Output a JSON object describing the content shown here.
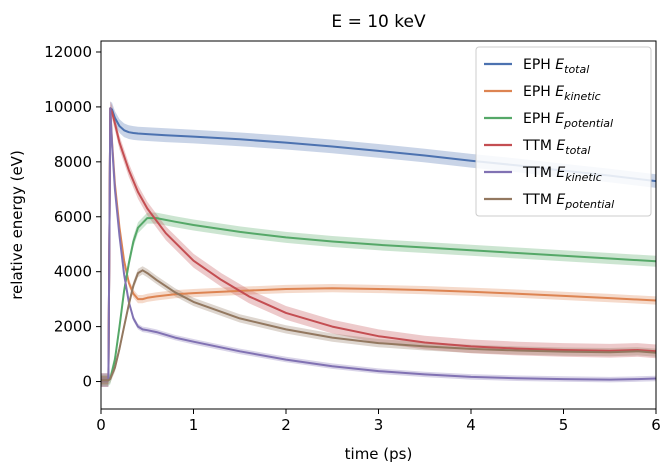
{
  "chart_data": {
    "type": "line",
    "title": "E = 10 keV",
    "xlabel": "time (ps)",
    "ylabel": "relative energy (eV)",
    "xlim": [
      0,
      6
    ],
    "ylim": [
      -1000,
      12400
    ],
    "xticks": [
      0,
      1,
      2,
      3,
      4,
      5,
      6
    ],
    "yticks": [
      0,
      2000,
      4000,
      6000,
      8000,
      10000,
      12000
    ],
    "grid": false,
    "legend_position": "top-right",
    "series": [
      {
        "name_base": "EPH",
        "name_sub": "total",
        "color": "#4c72b0",
        "band": 250,
        "x": [
          0,
          0.08,
          0.1,
          0.12,
          0.15,
          0.2,
          0.25,
          0.3,
          0.35,
          0.4,
          0.5,
          0.7,
          1.0,
          1.5,
          2.0,
          2.5,
          3.0,
          3.5,
          4.0,
          4.5,
          5.0,
          5.5,
          6.0
        ],
        "y": [
          50,
          50,
          9950,
          9900,
          9600,
          9300,
          9150,
          9080,
          9050,
          9030,
          9010,
          8970,
          8920,
          8820,
          8700,
          8560,
          8400,
          8230,
          8040,
          7870,
          7680,
          7500,
          7300
        ]
      },
      {
        "name_base": "EPH",
        "name_sub": "kinetic",
        "color": "#dd8452",
        "band": 150,
        "x": [
          0,
          0.08,
          0.1,
          0.12,
          0.15,
          0.2,
          0.25,
          0.3,
          0.35,
          0.4,
          0.45,
          0.5,
          0.6,
          0.8,
          1.0,
          1.5,
          2.0,
          2.5,
          3.0,
          3.5,
          4.0,
          4.5,
          5.0,
          5.5,
          6.0
        ],
        "y": [
          50,
          50,
          9950,
          8700,
          7200,
          5600,
          4400,
          3600,
          3200,
          3000,
          3000,
          3050,
          3100,
          3180,
          3220,
          3300,
          3370,
          3400,
          3370,
          3330,
          3270,
          3200,
          3120,
          3040,
          2950
        ]
      },
      {
        "name_base": "EPH",
        "name_sub": "potential",
        "color": "#55a868",
        "band": 200,
        "x": [
          0,
          0.08,
          0.1,
          0.15,
          0.2,
          0.25,
          0.3,
          0.35,
          0.4,
          0.5,
          0.6,
          0.8,
          1.0,
          1.5,
          2.0,
          2.5,
          3.0,
          3.5,
          4.0,
          4.5,
          5.0,
          5.5,
          6.0
        ],
        "y": [
          50,
          50,
          100,
          800,
          2000,
          3300,
          4300,
          5100,
          5600,
          5950,
          5950,
          5820,
          5700,
          5450,
          5250,
          5100,
          4980,
          4880,
          4780,
          4680,
          4580,
          4480,
          4380
        ]
      },
      {
        "name_base": "TTM",
        "name_sub": "total",
        "color": "#c44e52",
        "band": 250,
        "x": [
          0,
          0.08,
          0.1,
          0.12,
          0.15,
          0.2,
          0.3,
          0.4,
          0.5,
          0.7,
          1.0,
          1.3,
          1.6,
          2.0,
          2.5,
          3.0,
          3.5,
          4.0,
          4.5,
          5.0,
          5.5,
          5.8,
          6.0
        ],
        "y": [
          50,
          50,
          9950,
          9800,
          9400,
          8700,
          7700,
          6900,
          6300,
          5400,
          4400,
          3700,
          3100,
          2500,
          2000,
          1650,
          1420,
          1280,
          1200,
          1150,
          1120,
          1150,
          1100
        ]
      },
      {
        "name_base": "TTM",
        "name_sub": "kinetic",
        "color": "#8172b3",
        "band": 100,
        "x": [
          0,
          0.08,
          0.1,
          0.12,
          0.15,
          0.2,
          0.25,
          0.3,
          0.35,
          0.4,
          0.45,
          0.5,
          0.6,
          0.8,
          1.0,
          1.5,
          2.0,
          2.5,
          3.0,
          3.5,
          4.0,
          4.5,
          5.0,
          5.5,
          5.8,
          6.0
        ],
        "y": [
          50,
          50,
          9950,
          8600,
          7000,
          5300,
          3900,
          2900,
          2300,
          2000,
          1900,
          1870,
          1800,
          1600,
          1450,
          1100,
          800,
          560,
          380,
          260,
          170,
          120,
          90,
          70,
          90,
          110
        ]
      },
      {
        "name_base": "TTM",
        "name_sub": "potential",
        "color": "#937860",
        "band": 150,
        "x": [
          0,
          0.08,
          0.1,
          0.15,
          0.2,
          0.25,
          0.3,
          0.35,
          0.4,
          0.45,
          0.5,
          0.6,
          0.8,
          1.0,
          1.5,
          2.0,
          2.5,
          3.0,
          3.5,
          4.0,
          4.5,
          5.0,
          5.5,
          5.8,
          6.0
        ],
        "y": [
          50,
          50,
          100,
          500,
          1200,
          2000,
          2800,
          3500,
          3950,
          4050,
          3950,
          3700,
          3250,
          2900,
          2300,
          1900,
          1600,
          1400,
          1280,
          1190,
          1130,
          1090,
          1070,
          1100,
          1050
        ]
      }
    ]
  }
}
